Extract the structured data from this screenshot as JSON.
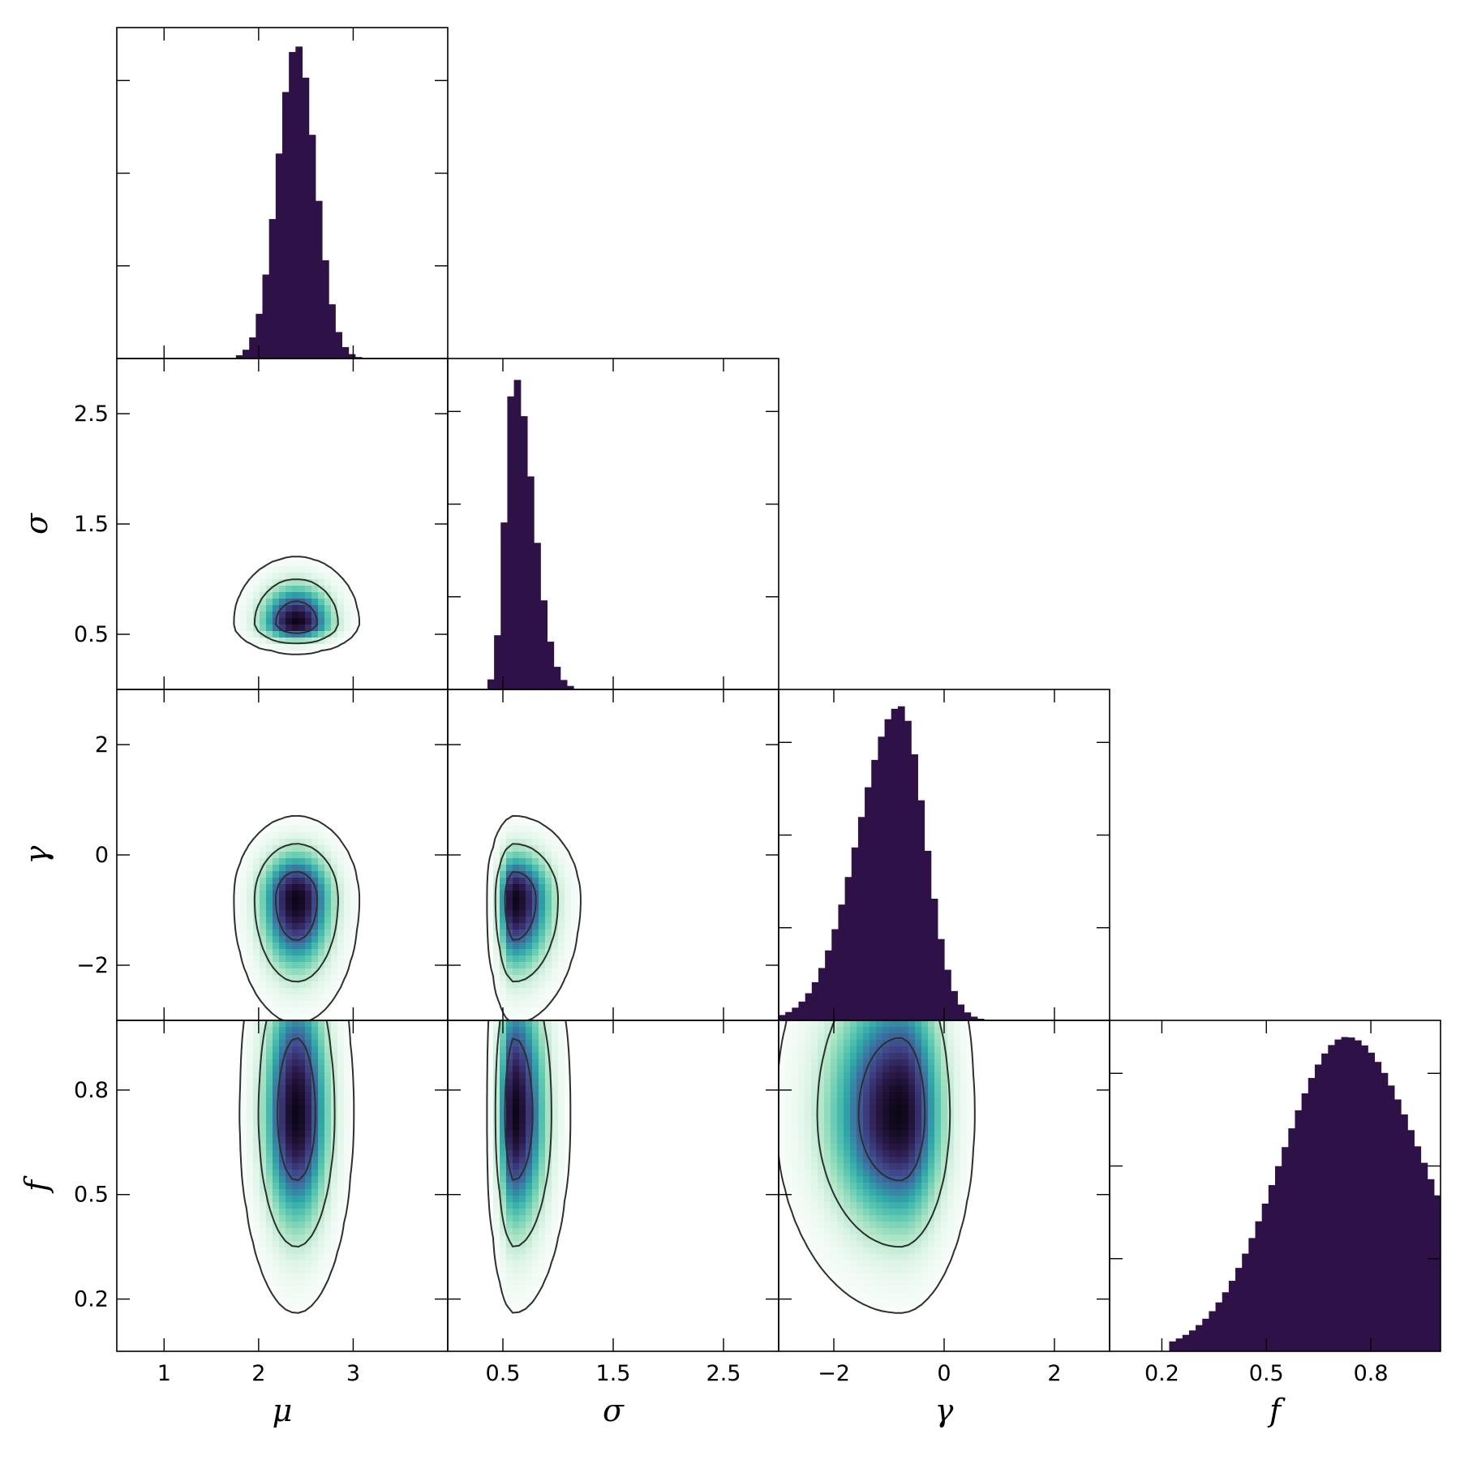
{
  "chart_data": {
    "type": "corner",
    "colors": {
      "hist": "#2d1147",
      "contour_line": "#2f2f2f",
      "cmap": [
        "#ffffff",
        "#e0f5e8",
        "#a8e3c3",
        "#5fcab0",
        "#2fa6a8",
        "#3a6fa0",
        "#3e3f82",
        "#2b1a4a",
        "#0d0617"
      ]
    },
    "parameters": [
      {
        "name": "mu",
        "label": "μ",
        "range": [
          0.5,
          4.0
        ],
        "ticks": [
          1,
          2,
          3
        ],
        "tick_labels": [
          "1",
          "2",
          "3"
        ]
      },
      {
        "name": "sigma",
        "label": "σ",
        "range": [
          0.0,
          3.0
        ],
        "ticks": [
          0.5,
          1.5,
          2.5
        ],
        "tick_labels": [
          "0.5",
          "1.5",
          "2.5"
        ]
      },
      {
        "name": "gamma",
        "label": "γ",
        "range": [
          -3.0,
          3.0
        ],
        "ticks": [
          -2,
          0,
          2
        ],
        "tick_labels": [
          "−2",
          "0",
          "2"
        ]
      },
      {
        "name": "f",
        "label": "f",
        "range": [
          0.05,
          1.0
        ],
        "ticks": [
          0.2,
          0.5,
          0.8
        ],
        "tick_labels": [
          "0.2",
          "0.5",
          "0.8"
        ]
      }
    ],
    "marginals": [
      {
        "param": "mu",
        "type": "histogram",
        "peak": 2.4,
        "width_left": 0.2,
        "width_right": 0.2,
        "support": [
          1.75,
          3.1
        ]
      },
      {
        "param": "sigma",
        "type": "histogram",
        "peak": 0.6,
        "width_left": 0.08,
        "width_right": 0.17,
        "support": [
          0.35,
          1.75
        ]
      },
      {
        "param": "gamma",
        "type": "histogram",
        "peak": -0.8,
        "width_left": 0.75,
        "width_right": 0.45,
        "support": [
          -3.0,
          0.7
        ]
      },
      {
        "param": "f",
        "type": "histogram",
        "peak": 0.73,
        "width_left": 0.19,
        "width_right": 0.22,
        "support": [
          0.22,
          1.0
        ]
      }
    ],
    "joints": [
      {
        "x": "mu",
        "y": "sigma",
        "type": "2d-density",
        "center": [
          2.4,
          0.6
        ],
        "scale_x": 0.22,
        "scale_y_low": 0.09,
        "scale_y_high": 0.2
      },
      {
        "x": "mu",
        "y": "gamma",
        "type": "2d-density",
        "center": [
          2.4,
          -0.8
        ],
        "scale_x": 0.22,
        "scale_y_low": 0.75,
        "scale_y_high": 0.5
      },
      {
        "x": "sigma",
        "y": "gamma",
        "type": "2d-density",
        "center": [
          0.6,
          -0.8
        ],
        "scale_x_low": 0.08,
        "scale_x_high": 0.2,
        "scale_y_low": 0.75,
        "scale_y_high": 0.5
      },
      {
        "x": "mu",
        "y": "f",
        "type": "2d-density",
        "center": [
          2.4,
          0.73
        ],
        "scale_x": 0.2,
        "scale_y_low": 0.19,
        "scale_y_high": 0.22
      },
      {
        "x": "sigma",
        "y": "f",
        "type": "2d-density",
        "center": [
          0.6,
          0.73
        ],
        "scale_x_low": 0.08,
        "scale_x_high": 0.17,
        "scale_y_low": 0.19,
        "scale_y_high": 0.22
      },
      {
        "x": "gamma",
        "y": "f",
        "type": "2d-density",
        "center": [
          -0.8,
          0.73
        ],
        "scale_x_low": 0.75,
        "scale_x_high": 0.45,
        "scale_y_low": 0.19,
        "scale_y_high": 0.22
      }
    ],
    "contour_levels_sigma": [
      1,
      2,
      3
    ],
    "legend": "none",
    "grid": false
  }
}
